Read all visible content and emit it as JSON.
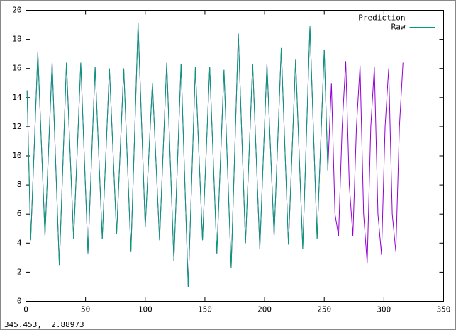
{
  "chart_data": {
    "type": "line",
    "x": [
      1,
      4,
      7,
      10,
      13,
      16,
      19,
      22,
      25,
      28,
      31,
      34,
      37,
      40,
      43,
      46,
      49,
      52,
      55,
      58,
      61,
      64,
      67,
      70,
      73,
      76,
      79,
      82,
      85,
      88,
      91,
      94,
      97,
      100,
      103,
      106,
      109,
      112,
      115,
      118,
      121,
      124,
      127,
      130,
      133,
      136,
      139,
      142,
      145,
      148,
      151,
      154,
      157,
      160,
      163,
      166,
      169,
      172,
      175,
      178,
      181,
      184,
      187,
      190,
      193,
      196,
      199,
      202,
      205,
      208,
      211,
      214,
      217,
      220,
      223,
      226,
      229,
      232,
      235,
      238,
      241,
      244,
      247,
      250,
      253,
      256,
      259,
      262,
      265,
      268,
      271,
      274,
      277,
      280,
      283,
      286,
      289,
      292,
      295,
      298,
      301,
      304,
      307,
      310,
      313,
      316
    ],
    "series": [
      {
        "name": "Prediction",
        "color": "#9400d3",
        "values": [
          14.5,
          4.2,
          10.6,
          17.1,
          10.8,
          4.5,
          10.4,
          16.4,
          9.4,
          2.5,
          9.4,
          16.4,
          10.3,
          4.3,
          10.3,
          16.4,
          9.8,
          3.3,
          9.7,
          16.1,
          10.2,
          4.3,
          10.1,
          16.0,
          10.3,
          4.6,
          10.3,
          16.0,
          9.7,
          3.4,
          11.2,
          19.1,
          12.1,
          5.1,
          10.0,
          15.0,
          9.6,
          4.2,
          10.3,
          16.4,
          9.6,
          2.8,
          9.5,
          16.3,
          8.6,
          1.0,
          8.5,
          16.1,
          10.1,
          4.2,
          10.1,
          16.1,
          9.7,
          3.3,
          9.6,
          15.9,
          9.1,
          2.3,
          10.3,
          18.4,
          11.2,
          4.0,
          10.1,
          16.3,
          10.0,
          3.6,
          10.0,
          16.3,
          10.4,
          4.5,
          10.9,
          17.4,
          10.6,
          3.9,
          10.2,
          16.6,
          10.1,
          3.6,
          11.2,
          18.9,
          11.6,
          4.3,
          10.8,
          17.3,
          9.0,
          15.0,
          6.0,
          4.5,
          12.0,
          16.5,
          8.0,
          4.5,
          12.0,
          16.2,
          6.0,
          2.6,
          12.0,
          16.1,
          6.0,
          3.2,
          12.0,
          16.0,
          6.0,
          3.4,
          12.0,
          16.4
        ]
      },
      {
        "name": "Raw",
        "color": "#009e73",
        "values": [
          14.5,
          4.2,
          10.6,
          17.1,
          10.8,
          4.5,
          10.4,
          16.4,
          9.4,
          2.5,
          9.4,
          16.4,
          10.3,
          4.3,
          10.3,
          16.4,
          9.8,
          3.3,
          9.7,
          16.1,
          10.2,
          4.3,
          10.1,
          16.0,
          10.3,
          4.6,
          10.3,
          16.0,
          9.7,
          3.4,
          11.2,
          19.1,
          12.1,
          5.1,
          10.0,
          15.0,
          9.6,
          4.2,
          10.3,
          16.4,
          9.6,
          2.8,
          9.5,
          16.3,
          8.6,
          1.0,
          8.5,
          16.1,
          10.1,
          4.2,
          10.1,
          16.1,
          9.7,
          3.3,
          9.6,
          15.9,
          9.1,
          2.3,
          10.3,
          18.4,
          11.2,
          4.0,
          10.1,
          16.3,
          10.0,
          3.6,
          10.0,
          16.3,
          10.4,
          4.5,
          10.9,
          17.4,
          10.6,
          3.9,
          10.2,
          16.6,
          10.1,
          3.6,
          11.2,
          18.9,
          11.6,
          4.3,
          10.8,
          17.3,
          9.0,
          null,
          null,
          null,
          null,
          null,
          null,
          null,
          null,
          null,
          null,
          null,
          null,
          null,
          null,
          null,
          null,
          null,
          null,
          null,
          null,
          null
        ]
      }
    ],
    "xlim": [
      0,
      350
    ],
    "xticks": [
      0,
      50,
      100,
      150,
      200,
      250,
      300,
      350
    ],
    "ylim": [
      0,
      20
    ],
    "yticks": [
      0,
      2,
      4,
      6,
      8,
      10,
      12,
      14,
      16,
      18,
      20
    ],
    "legend": "top-right",
    "status": "345.453,  2.88973"
  }
}
